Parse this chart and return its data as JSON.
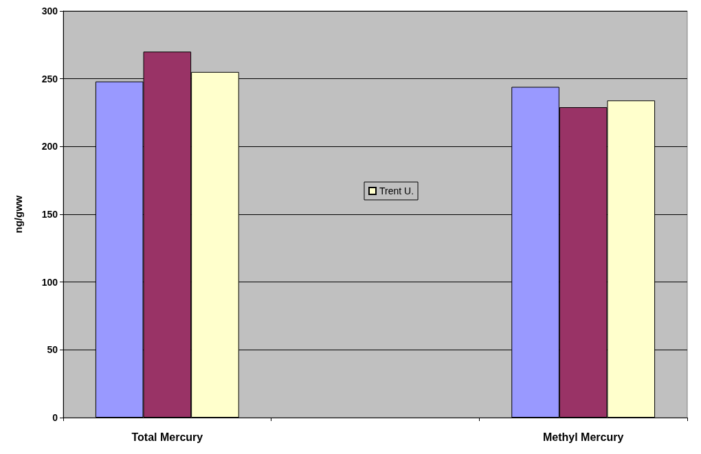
{
  "chart_data": {
    "type": "bar",
    "ylabel": "ng/gww",
    "categories": [
      "Total Mercury",
      null,
      "Methyl Mercury"
    ],
    "series": [
      {
        "color": "#9999ff",
        "values": [
          248,
          null,
          244
        ]
      },
      {
        "color": "#993366",
        "values": [
          270,
          null,
          229
        ]
      },
      {
        "name": "Trent U.",
        "color": "#ffffcc",
        "values": [
          255,
          null,
          234
        ]
      }
    ],
    "ylim": [
      0,
      300
    ],
    "yticks": [
      0,
      50,
      100,
      150,
      200,
      250,
      300
    ],
    "grid": "y",
    "legend": "center"
  }
}
